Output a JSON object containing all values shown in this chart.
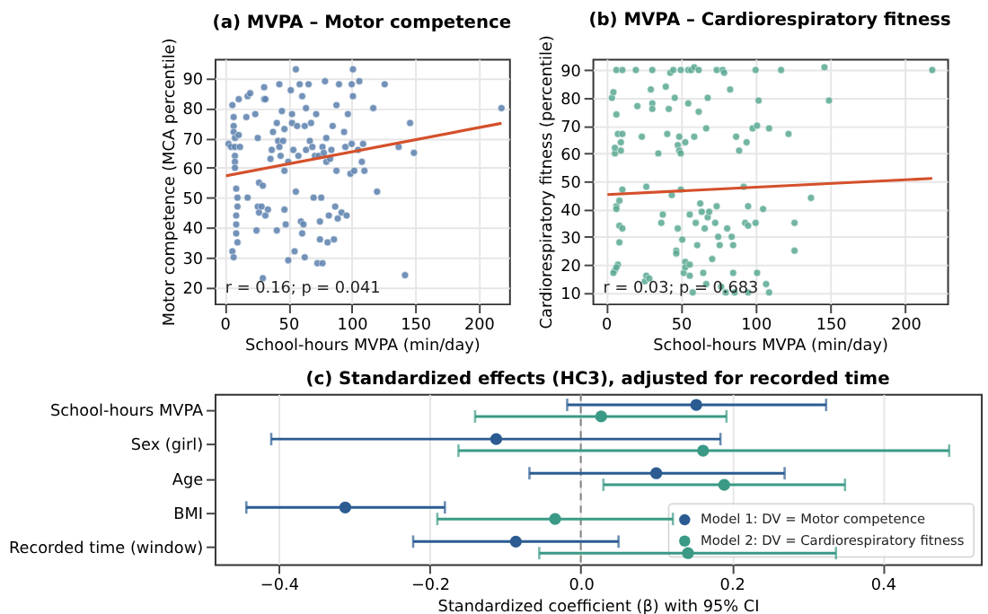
{
  "chart_data": [
    {
      "type": "scatter",
      "title": "(a) MVPA – Motor competence",
      "xlabel": "School-hours MVPA (min/day)",
      "ylabel": "Motor competence (MCA percentile)",
      "xlim": [
        -8,
        224
      ],
      "ylim": [
        14.5,
        96.5
      ],
      "xticks": [
        0,
        50,
        100,
        150,
        200
      ],
      "yticks": [
        20,
        30,
        40,
        50,
        60,
        70,
        80,
        90
      ],
      "grid": true,
      "marker": "circle",
      "annotations": [
        "r = 0.16; p = 0.041"
      ],
      "series": [
        {
          "color": "#5b80ad",
          "x": [
            3,
            5,
            6,
            7,
            7,
            7,
            8,
            8,
            8,
            8,
            8,
            11,
            11,
            9,
            10,
            10,
            9,
            9,
            9,
            10,
            6,
            7,
            12,
            18,
            20,
            17,
            18,
            24,
            26,
            27,
            26,
            27,
            29,
            25,
            30,
            31,
            32,
            31,
            30,
            32,
            34,
            36,
            37,
            38,
            41,
            41,
            42,
            43,
            43,
            44,
            45,
            46,
            47,
            47,
            47,
            48,
            50,
            50,
            52,
            53,
            53,
            54,
            55,
            56,
            56,
            57,
            58,
            59,
            60,
            61,
            61,
            62,
            63,
            63,
            64,
            64,
            66,
            67,
            68,
            69,
            70,
            71,
            72,
            73,
            74,
            75,
            75,
            76,
            77,
            77,
            78,
            79,
            80,
            80,
            81,
            82,
            83,
            84,
            85,
            86,
            87,
            88,
            88,
            89,
            90,
            92,
            94,
            95,
            96,
            97,
            99,
            100,
            100,
            101,
            101,
            102,
            105,
            106,
            108,
            109,
            110,
            117,
            120,
            126,
            137,
            142,
            146,
            149,
            218
          ],
          "values": [
            68,
            67,
            81,
            77,
            74,
            72,
            70,
            67,
            64,
            62,
            60,
            71,
            83,
            53,
            50,
            47,
            44,
            41,
            38,
            35,
            32,
            30,
            67,
            84,
            85,
            77,
            50,
            78,
            70,
            55,
            47,
            45,
            47,
            39,
            54,
            83,
            83,
            87,
            23,
            44,
            46,
            63,
            66,
            72,
            39,
            75,
            69,
            88,
            67,
            64,
            79,
            69,
            73,
            59,
            46,
            41,
            62,
            29,
            86,
            75,
            78,
            66,
            32,
            93,
            52,
            74,
            64,
            88,
            42,
            38,
            84,
            41,
            74,
            30,
            66,
            80,
            88,
            69,
            75,
            67,
            50,
            64,
            78,
            28,
            64,
            42,
            36,
            50,
            67,
            28,
            65,
            89,
            62,
            70,
            35,
            44,
            63,
            66,
            74,
            36,
            47,
            81,
            59,
            43,
            88,
            45,
            72,
            67,
            44,
            78,
            58,
            68,
            88,
            84,
            93,
            59,
            66,
            89,
            62,
            68,
            59,
            80,
            52,
            88,
            67,
            24,
            75,
            65,
            80
          ]
        },
        {
          "type": "line",
          "marker": "none",
          "color": "#d4502a",
          "x": [
            1,
            218
          ],
          "values": [
            57.3,
            74.9
          ]
        }
      ]
    },
    {
      "type": "scatter",
      "title": "(b) MVPA – Cardiorespiratory fitness",
      "xlabel": "School-hours MVPA (min/day)",
      "ylabel": "Cardiorespiratory fitness (percentile)",
      "xlim": [
        -9,
        228
      ],
      "ylim": [
        6,
        94
      ],
      "xticks": [
        0,
        50,
        100,
        150,
        200
      ],
      "yticks": [
        10,
        20,
        30,
        40,
        50,
        60,
        70,
        80,
        90
      ],
      "grid": true,
      "marker": "circle",
      "annotations": [
        "r = 0.03; p = 0.683"
      ],
      "series": [
        {
          "color": "#5aa993",
          "x": [
            4,
            5,
            6,
            6,
            7,
            7,
            7,
            8,
            7,
            11,
            9,
            9,
            9,
            10,
            10,
            11,
            11,
            11,
            6,
            5,
            8,
            7,
            20,
            21,
            24,
            27,
            26,
            27,
            29,
            30,
            31,
            31,
            31,
            35,
            37,
            38,
            40,
            41,
            42,
            43,
            44,
            45,
            46,
            47,
            47,
            48,
            48,
            49,
            49,
            50,
            50,
            50,
            51,
            52,
            53,
            53,
            53,
            55,
            55,
            56,
            56,
            56,
            57,
            58,
            59,
            59,
            60,
            61,
            62,
            62,
            63,
            64,
            65,
            66,
            67,
            67,
            68,
            68,
            69,
            71,
            73,
            74,
            74,
            75,
            76,
            77,
            78,
            79,
            80,
            81,
            83,
            84,
            85,
            85,
            86,
            87,
            89,
            92,
            93,
            94,
            95,
            95,
            95,
            98,
            100,
            100,
            101,
            101,
            102,
            105,
            107,
            109,
            109,
            117,
            122,
            126,
            126,
            137,
            146,
            149,
            218
          ],
          "values": [
            80,
            82,
            60,
            62,
            74,
            41,
            40,
            67,
            90,
            90,
            43,
            34,
            28,
            64,
            61,
            33,
            47,
            67,
            18,
            17,
            20,
            19,
            90,
            77,
            66,
            48,
            14,
            16,
            15,
            83,
            90,
            78,
            76,
            60,
            35,
            38,
            84,
            67,
            76,
            89,
            45,
            90,
            80,
            25,
            24,
            33,
            63,
            66,
            61,
            60,
            90,
            47,
            29,
            17,
            21,
            64,
            19,
            90,
            78,
            20,
            38,
            16,
            90,
            10,
            66,
            91,
            35,
            27,
            90,
            75,
            42,
            39,
            17,
            33,
            69,
            13,
            80,
            37,
            39,
            22,
            35,
            41,
            90,
            30,
            27,
            12,
            90,
            89,
            10,
            33,
            83,
            30,
            17,
            27,
            10,
            66,
            61,
            48,
            35,
            64,
            34,
            41,
            10,
            69,
            90,
            35,
            17,
            70,
            79,
            40,
            13,
            69,
            10,
            90,
            67,
            35,
            25,
            44,
            91,
            79,
            90
          ]
        },
        {
          "type": "line",
          "marker": "none",
          "color": "#d4502a",
          "x": [
            1,
            218
          ],
          "values": [
            45.2,
            51
          ]
        }
      ]
    },
    {
      "type": "scatter",
      "orientation": "horizontal",
      "title": "(c) Standardized effects (HC3), adjusted for recorded time",
      "xlabel": "Standardized coefficient (β) with 95% CI",
      "categories": [
        "School-hours MVPA",
        "Sex (girl)",
        "Age",
        "BMI",
        "Recorded time (window)"
      ],
      "xlim": [
        -0.485,
        0.53
      ],
      "xticks": [
        {
          "value": -0.4,
          "label": "−0.4"
        },
        {
          "value": -0.2,
          "label": "−0.2"
        },
        {
          "value": 0,
          "label": "0.0"
        },
        0.2,
        0.4
      ],
      "grid": "x",
      "legend": "bottom right",
      "marker": "circle",
      "ref_lines": [
        {
          "axis": "x",
          "value": 0,
          "color": "#808080",
          "line_style": "dashed"
        }
      ],
      "series": [
        {
          "name": "Model 1: DV = Motor competence",
          "color": "#2b5b91",
          "values": [
            0.153,
            -0.112,
            0.1,
            -0.312,
            -0.086
          ],
          "errors": [
            [
              -0.018,
              0.325
            ],
            [
              -0.41,
              0.185
            ],
            [
              -0.068,
              0.27
            ],
            [
              -0.443,
              -0.18
            ],
            [
              -0.222,
              0.05
            ]
          ]
        },
        {
          "name": "Model 2: DV = Cardiorespiratory fitness",
          "color": "#3a9a85",
          "values": [
            0.027,
            0.162,
            0.19,
            -0.034,
            0.142
          ],
          "errors": [
            [
              -0.14,
              0.193
            ],
            [
              -0.162,
              0.488
            ],
            [
              0.03,
              0.35
            ],
            [
              -0.19,
              0.122
            ],
            [
              -0.055,
              0.338
            ]
          ]
        }
      ]
    }
  ]
}
